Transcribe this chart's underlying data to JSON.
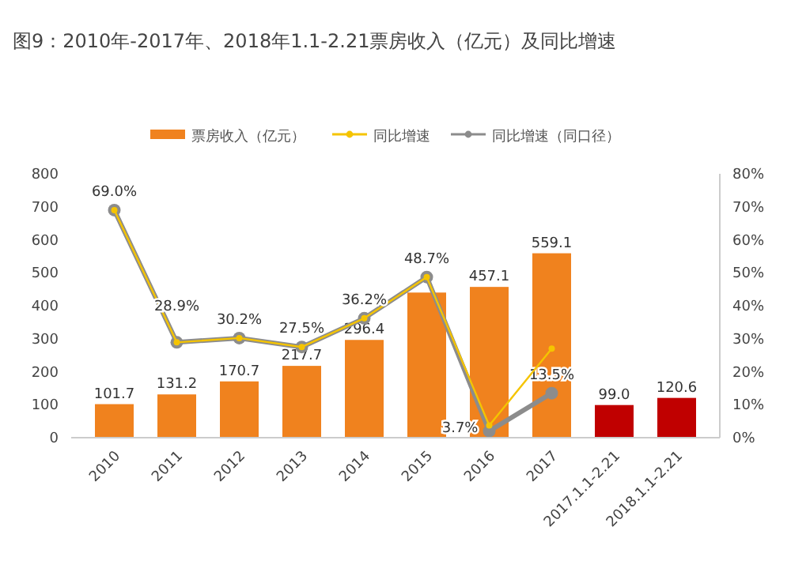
{
  "chart_data": {
    "type": "bar",
    "title": "图9：2010年-2017年、2018年1.1-2.21票房收入（亿元）及同比增速",
    "categories": [
      "2010",
      "2011",
      "2012",
      "2013",
      "2014",
      "2015",
      "2016",
      "2017",
      "2017.1.1-2.21",
      "2018.1.1-2.21"
    ],
    "series": [
      {
        "name": "票房收入（亿元）",
        "color": "#f0821e",
        "colors": [
          "#f0821e",
          "#f0821e",
          "#f0821e",
          "#f0821e",
          "#f0821e",
          "#f0821e",
          "#f0821e",
          "#f0821e",
          "#c00000",
          "#c00000"
        ],
        "values": [
          101.7,
          131.2,
          170.7,
          217.7,
          296.4,
          440,
          457.1,
          559.1,
          99.0,
          120.6
        ],
        "value_labels": [
          "101.7",
          "131.2",
          "170.7",
          "217.7",
          "296.4",
          null,
          "457.1",
          "559.1",
          "99.0",
          "120.6"
        ]
      },
      {
        "name": "同比增速",
        "type": "line",
        "axis": "y2",
        "color": "#f5c400",
        "values": [
          69.0,
          28.9,
          30.2,
          27.5,
          36.2,
          48.7,
          3.7,
          27,
          null,
          null
        ],
        "value_labels": [
          "69.0%",
          "28.9%",
          "30.2%",
          "27.5%",
          "36.2%",
          "48.7%",
          "3.7%",
          null,
          null,
          null
        ]
      },
      {
        "name": "同比增速（同口径）",
        "type": "line",
        "axis": "y2",
        "color": "#8c8c8c",
        "values": [
          69.0,
          28.9,
          30.2,
          27.5,
          36.2,
          48.7,
          2,
          13.5,
          null,
          null
        ],
        "value_labels": [
          null,
          null,
          null,
          null,
          null,
          null,
          null,
          "13.5%",
          null,
          null
        ]
      }
    ],
    "ylim": [
      0,
      800
    ],
    "yticks": [
      0,
      100,
      200,
      300,
      400,
      500,
      600,
      700,
      800
    ],
    "y2lim": [
      0,
      80
    ],
    "y2ticks": [
      {
        "value": 0,
        "label": "0%"
      },
      {
        "value": 10,
        "label": "10%"
      },
      {
        "value": 20,
        "label": "20%"
      },
      {
        "value": 30,
        "label": "30%"
      },
      {
        "value": 40,
        "label": "40%"
      },
      {
        "value": 50,
        "label": "50%"
      },
      {
        "value": 60,
        "label": "60%"
      },
      {
        "value": 70,
        "label": "70%"
      },
      {
        "value": 80,
        "label": "80%"
      }
    ],
    "legend": "top",
    "marker": "circle",
    "grid": false
  }
}
